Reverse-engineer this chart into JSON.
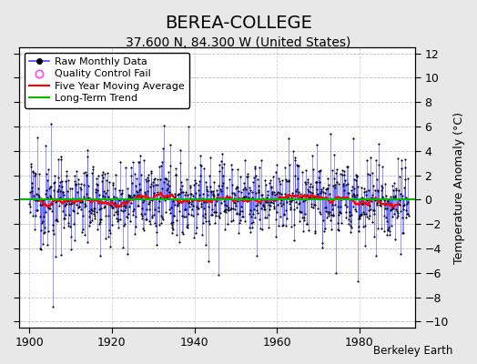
{
  "title": "BEREA-COLLEGE",
  "subtitle": "37.600 N, 84.300 W (United States)",
  "credit": "Berkeley Earth",
  "ylabel": "Temperature Anomaly (°C)",
  "xlim": [
    1897.5,
    1993.5
  ],
  "ylim": [
    -10.5,
    12.5
  ],
  "yticks": [
    -10,
    -8,
    -6,
    -4,
    -2,
    0,
    2,
    4,
    6,
    8,
    10,
    12
  ],
  "xticks": [
    1900,
    1920,
    1940,
    1960,
    1980
  ],
  "start_year": 1900,
  "end_year": 1992,
  "bg_color": "#e8e8e8",
  "plot_bg": "#ffffff",
  "line_color": "#4444ff",
  "ma_color": "#ff0000",
  "trend_color": "#00bb00",
  "dot_color": "#000000",
  "qc_color": "#ff44ff",
  "title_fontsize": 14,
  "subtitle_fontsize": 10,
  "ylabel_fontsize": 9,
  "tick_fontsize": 9,
  "legend_fontsize": 8,
  "credit_fontsize": 8.5
}
